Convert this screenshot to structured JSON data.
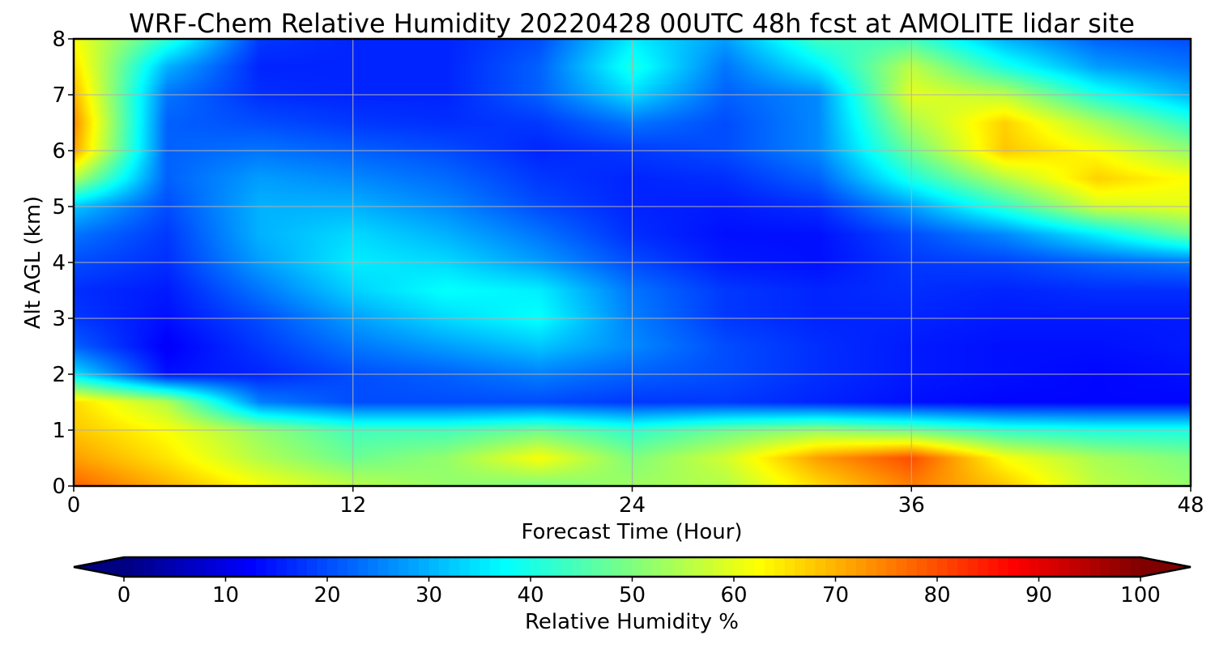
{
  "chart_data": {
    "type": "heatmap",
    "title": "WRF-Chem Relative Humidity 20220428 00UTC 48h fcst at AMOLITE lidar site",
    "xlabel": "Forecast Time (Hour)",
    "ylabel": "Alt AGL (km)",
    "xlim": [
      0,
      48
    ],
    "ylim": [
      0,
      8
    ],
    "xticks": [
      0,
      12,
      24,
      36,
      48
    ],
    "yticks": [
      0,
      1,
      2,
      3,
      4,
      5,
      6,
      7,
      8
    ],
    "grid": true,
    "x": [
      0,
      4,
      8,
      12,
      16,
      20,
      24,
      28,
      32,
      36,
      40,
      44,
      48
    ],
    "y": [
      0,
      0.5,
      1,
      1.5,
      2,
      2.5,
      3,
      3.5,
      4,
      4.5,
      5,
      5.5,
      6,
      6.5,
      7,
      7.5,
      8
    ],
    "z": [
      [
        78,
        70,
        62,
        56,
        52,
        50,
        53,
        55,
        66,
        75,
        68,
        56,
        52
      ],
      [
        72,
        65,
        55,
        48,
        52,
        62,
        50,
        58,
        72,
        80,
        62,
        54,
        50
      ],
      [
        68,
        62,
        52,
        44,
        44,
        48,
        42,
        48,
        52,
        48,
        42,
        40,
        40
      ],
      [
        66,
        55,
        25,
        20,
        20,
        20,
        18,
        18,
        16,
        14,
        13,
        13,
        13
      ],
      [
        35,
        14,
        16,
        20,
        22,
        25,
        22,
        20,
        17,
        15,
        14,
        13,
        14
      ],
      [
        22,
        12,
        18,
        24,
        28,
        32,
        26,
        20,
        17,
        15,
        14,
        14,
        15
      ],
      [
        18,
        14,
        20,
        28,
        34,
        38,
        25,
        18,
        16,
        16,
        15,
        15,
        15
      ],
      [
        17,
        15,
        24,
        33,
        38,
        36,
        24,
        18,
        16,
        17,
        16,
        17,
        17
      ],
      [
        20,
        17,
        28,
        36,
        34,
        28,
        20,
        15,
        14,
        18,
        19,
        22,
        24
      ],
      [
        24,
        18,
        30,
        34,
        30,
        24,
        17,
        14,
        14,
        20,
        26,
        36,
        48
      ],
      [
        32,
        20,
        30,
        30,
        26,
        20,
        16,
        15,
        17,
        28,
        42,
        58,
        60
      ],
      [
        55,
        22,
        28,
        26,
        23,
        18,
        16,
        17,
        22,
        40,
        55,
        67,
        62
      ],
      [
        72,
        22,
        24,
        22,
        20,
        16,
        18,
        20,
        26,
        48,
        68,
        62,
        52
      ],
      [
        74,
        22,
        20,
        18,
        17,
        18,
        24,
        20,
        26,
        54,
        67,
        54,
        42
      ],
      [
        70,
        24,
        17,
        16,
        16,
        22,
        34,
        22,
        26,
        60,
        56,
        40,
        30
      ],
      [
        66,
        30,
        16,
        16,
        16,
        22,
        40,
        24,
        36,
        56,
        40,
        28,
        24
      ],
      [
        62,
        42,
        18,
        16,
        16,
        20,
        36,
        28,
        44,
        44,
        30,
        22,
        20
      ]
    ],
    "colorbar": {
      "label": "Relative Humidity %",
      "ticks": [
        0,
        10,
        20,
        30,
        40,
        50,
        60,
        70,
        80,
        90,
        100
      ],
      "range": [
        0,
        100
      ],
      "extend": "both",
      "colormap": "jet"
    }
  }
}
